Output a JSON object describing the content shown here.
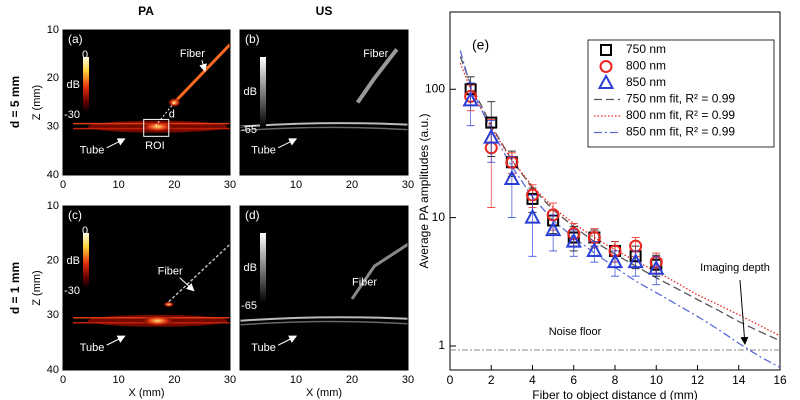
{
  "image_panels": {
    "column_titles": [
      "PA",
      "US"
    ],
    "row_labels": [
      "d = 5 mm",
      "d = 1 mm"
    ],
    "x_label": "X (mm)",
    "z_label": "Z (mm)",
    "xlim": [
      0,
      30
    ],
    "zlim": [
      10,
      40
    ],
    "xticks": [
      0,
      10,
      20,
      30
    ],
    "zticks": [
      10,
      20,
      30,
      40
    ],
    "panels": [
      {
        "label": "(a)",
        "colorbar_unit": "dB",
        "colorbar_ticks": [
          0,
          -30
        ],
        "fiber": "Fiber",
        "tube": "Tube",
        "roi": "ROI",
        "distance": "d"
      },
      {
        "label": "(b)",
        "colorbar_unit": "dB",
        "colorbar_ticks": [
          -65
        ],
        "fiber": "Fiber",
        "tube": "Tube"
      },
      {
        "label": "(c)",
        "colorbar_unit": "dB",
        "colorbar_ticks": [
          0,
          -30
        ],
        "fiber": "Fiber",
        "tube": "Tube"
      },
      {
        "label": "(d)",
        "colorbar_unit": "dB",
        "colorbar_ticks": [
          -65
        ],
        "fiber": "Fiber",
        "tube": "Tube"
      }
    ]
  },
  "chart_data": {
    "type": "scatter",
    "label": "(e)",
    "x_label": "Fiber to object distance d (mm)",
    "y_label": "Average PA amplitudes (a.u.)",
    "xlim": [
      0,
      16
    ],
    "xticks": [
      0,
      2,
      4,
      6,
      8,
      10,
      12,
      14,
      16
    ],
    "ylim": [
      0.65,
      400
    ],
    "yticks": [
      1,
      10,
      100
    ],
    "log_y": true,
    "legend": "upper right",
    "series": [
      {
        "name": "750 nm",
        "color": "#000000",
        "marker": "square",
        "x": [
          1,
          2,
          3,
          4,
          5,
          6,
          7,
          8,
          9,
          10
        ],
        "values": [
          100,
          55,
          27,
          14,
          9.5,
          7,
          7,
          5.5,
          5,
          4.3
        ],
        "errors": [
          25,
          25,
          6,
          3,
          2,
          1.5,
          1,
          1,
          1,
          0.8
        ]
      },
      {
        "name": "800 nm",
        "color": "#e8251f",
        "marker": "circle",
        "x": [
          1,
          2,
          3,
          4,
          5,
          6,
          7,
          8,
          9,
          10
        ],
        "values": [
          88,
          35,
          27,
          15,
          10.5,
          7.5,
          7,
          5.5,
          6,
          4.5
        ],
        "errors": [
          20,
          23,
          5,
          3,
          2.5,
          1.5,
          1.2,
          1,
          1,
          0.8
        ]
      },
      {
        "name": "850 nm",
        "color": "#2a3fd8",
        "marker": "triangle",
        "x": [
          1,
          2,
          3,
          4,
          5,
          6,
          7,
          8,
          9,
          10
        ],
        "values": [
          82,
          42,
          20,
          10,
          8,
          6.5,
          5.5,
          4.5,
          4.5,
          4
        ],
        "errors": [
          30,
          15,
          10,
          5,
          2.5,
          1.5,
          1,
          1,
          1,
          1
        ]
      }
    ],
    "fits": [
      {
        "name": "750 nm fit, R² = 0.99",
        "color": "#555555",
        "dash": "8 4",
        "x": [
          0.5,
          1,
          2,
          3,
          4,
          5,
          6,
          7,
          8,
          9,
          10,
          11,
          12,
          13,
          14,
          15,
          16
        ],
        "values": [
          180,
          110,
          52,
          28,
          17,
          11.5,
          8.5,
          6.5,
          5.2,
          4.2,
          3.4,
          2.8,
          2.3,
          1.9,
          1.55,
          1.3,
          1.1
        ]
      },
      {
        "name": "800 nm fit, R² = 0.99",
        "color": "#e8251f",
        "dash": "1.5 2",
        "x": [
          0.5,
          1,
          2,
          3,
          4,
          5,
          6,
          7,
          8,
          9,
          10,
          11,
          12,
          13,
          14,
          15,
          16
        ],
        "values": [
          160,
          100,
          50,
          28,
          17.5,
          12,
          9,
          7,
          5.6,
          4.6,
          3.8,
          3.1,
          2.5,
          2.1,
          1.75,
          1.45,
          1.2
        ]
      },
      {
        "name": "850 nm fit, R² = 0.99",
        "color": "#5a6bd8",
        "dash": "8 3 2 3",
        "x": [
          0.5,
          1,
          2,
          3,
          4,
          5,
          6,
          7,
          8,
          9,
          10,
          11,
          12,
          13,
          14,
          15,
          16
        ],
        "values": [
          200,
          105,
          48,
          25,
          14.5,
          9.5,
          7,
          5.3,
          4.1,
          3.2,
          2.6,
          2.1,
          1.7,
          1.35,
          1.05,
          0.83,
          0.68
        ]
      }
    ],
    "noise_floor": {
      "value": 0.93,
      "label": "Noise floor"
    },
    "imaging_depth": {
      "x": 14.3,
      "value": 1,
      "label": "Imaging depth"
    }
  }
}
